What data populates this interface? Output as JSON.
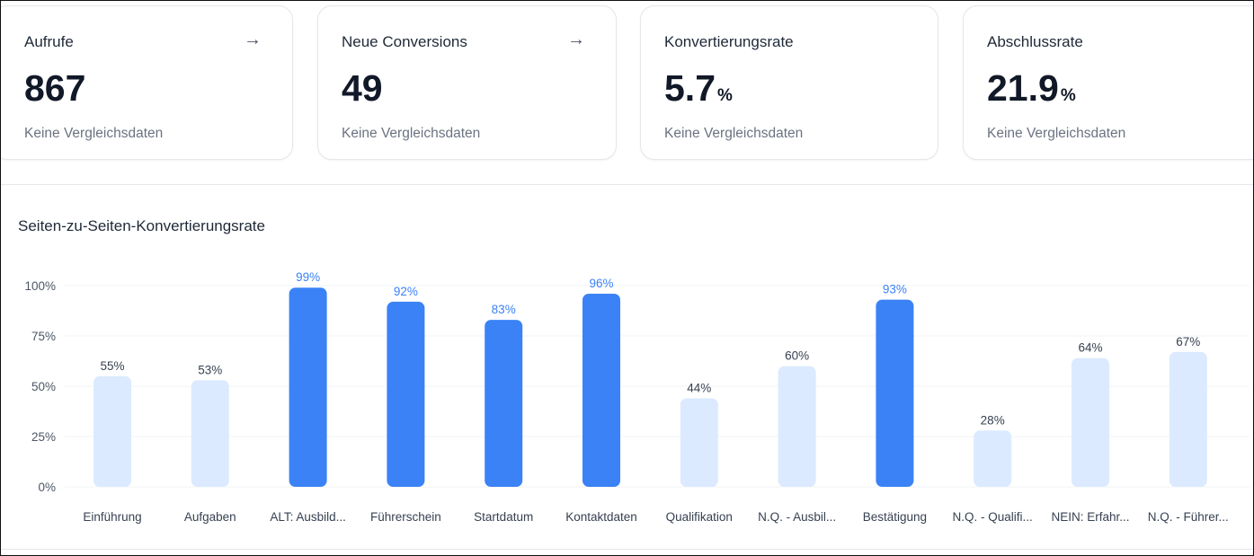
{
  "cards": [
    {
      "title": "Aufrufe",
      "value": "867",
      "unit": "",
      "subtitle": "Keine Vergleichsdaten",
      "has_arrow": true,
      "arrow_icon": "arrow-right-icon"
    },
    {
      "title": "Neue Conversions",
      "value": "49",
      "unit": "",
      "subtitle": "Keine Vergleichsdaten",
      "has_arrow": true,
      "arrow_icon": "arrow-right-icon"
    },
    {
      "title": "Konvertierungsrate",
      "value": "5.7",
      "unit": "%",
      "subtitle": "Keine Vergleichsdaten",
      "has_arrow": false
    },
    {
      "title": "Abschlussrate",
      "value": "21.9",
      "unit": "%",
      "subtitle": "Keine Vergleichsdaten",
      "has_arrow": false
    }
  ],
  "chart_data": {
    "type": "bar",
    "title": "Seiten-zu-Seiten-Konvertierungsrate",
    "categories": [
      "Einführung",
      "Aufgaben",
      "ALT: Ausbild...",
      "Führerschein",
      "Startdatum",
      "Kontaktdaten",
      "Qualifikation",
      "N.Q. - Ausbil...",
      "Bestätigung",
      "N.Q. - Qualifi...",
      "NEIN: Erfahr...",
      "N.Q. - Führer..."
    ],
    "values": [
      55,
      53,
      99,
      92,
      83,
      96,
      44,
      60,
      93,
      28,
      64,
      67
    ],
    "data_labels": [
      "55%",
      "53%",
      "99%",
      "92%",
      "83%",
      "96%",
      "44%",
      "60%",
      "93%",
      "28%",
      "64%",
      "67%"
    ],
    "highlighted": [
      false,
      false,
      true,
      true,
      true,
      true,
      false,
      false,
      true,
      false,
      false,
      false
    ],
    "yticks": [
      0,
      25,
      50,
      75,
      100
    ],
    "ytick_labels": [
      "0%",
      "25%",
      "50%",
      "75%",
      "100%"
    ],
    "ylim": [
      0,
      100
    ],
    "grid": true,
    "colors": {
      "highlight": "#3b82f6",
      "normal": "#dbeafe",
      "highlight_label": "#3b82f6",
      "normal_label": "#374151",
      "grid": "#f1f3f5"
    }
  }
}
